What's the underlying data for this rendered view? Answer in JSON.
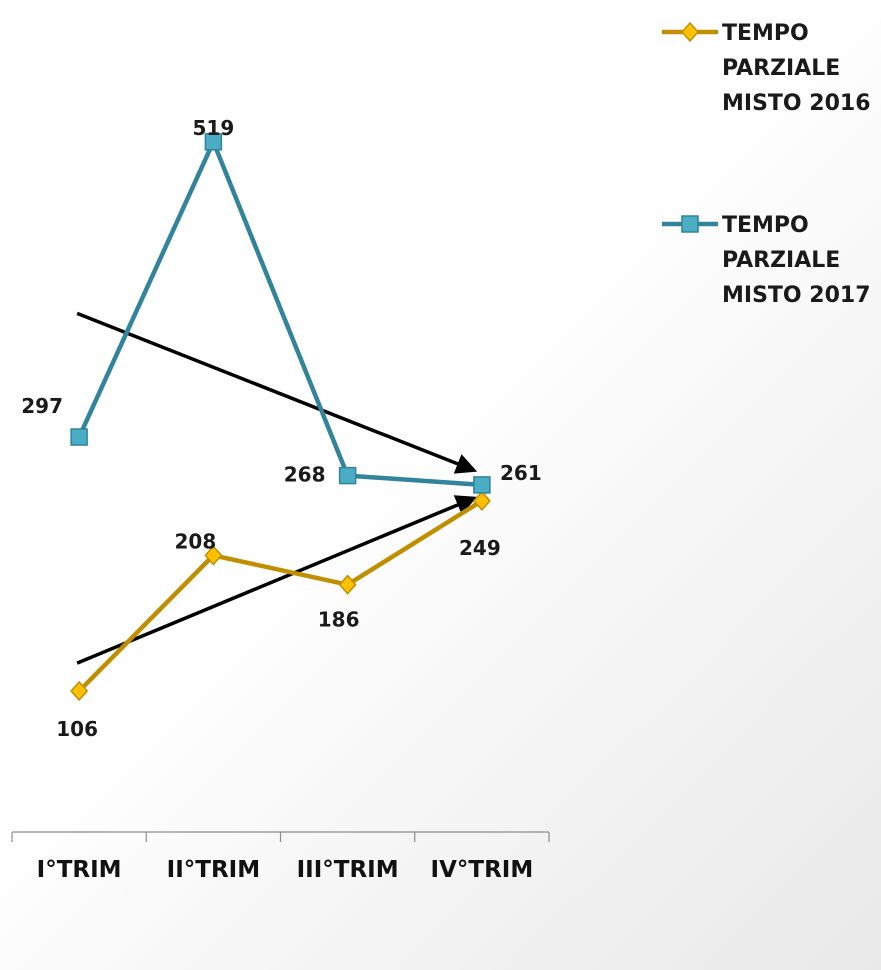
{
  "chart_data": {
    "type": "line",
    "categories": [
      "I°TRIM",
      "II°TRIM",
      "III°TRIM",
      "IV°TRIM"
    ],
    "series": [
      {
        "name": "TEMPO PARZIALE MISTO 2016",
        "legend_lines": [
          "TEMPO",
          "PARZIALE",
          "MISTO 2016"
        ],
        "values": [
          106,
          208,
          186,
          249
        ],
        "color": "#bf8f00",
        "marker_fill": "#ffc000",
        "marker": "diamond"
      },
      {
        "name": "TEMPO PARZIALE MISTO 2017",
        "legend_lines": [
          "TEMPO",
          "PARZIALE",
          "MISTO 2017"
        ],
        "values": [
          297,
          519,
          268,
          261
        ],
        "color": "#31849b",
        "marker_fill": "#4bacc6",
        "marker": "square"
      }
    ],
    "trend_arrows": [
      {
        "series": "TEMPO PARZIALE MISTO 2017",
        "from": [
          "I°TRIM",
          390
        ],
        "to": [
          "IV°TRIM",
          272
        ]
      },
      {
        "series": "TEMPO PARZIALE MISTO 2016",
        "from": [
          "I°TRIM",
          127
        ],
        "to": [
          "IV°TRIM",
          251
        ]
      }
    ],
    "title": "",
    "xlabel": "",
    "ylabel": "",
    "ylim": [
      0,
      573
    ],
    "grid": false,
    "legend_position": "top-right"
  }
}
